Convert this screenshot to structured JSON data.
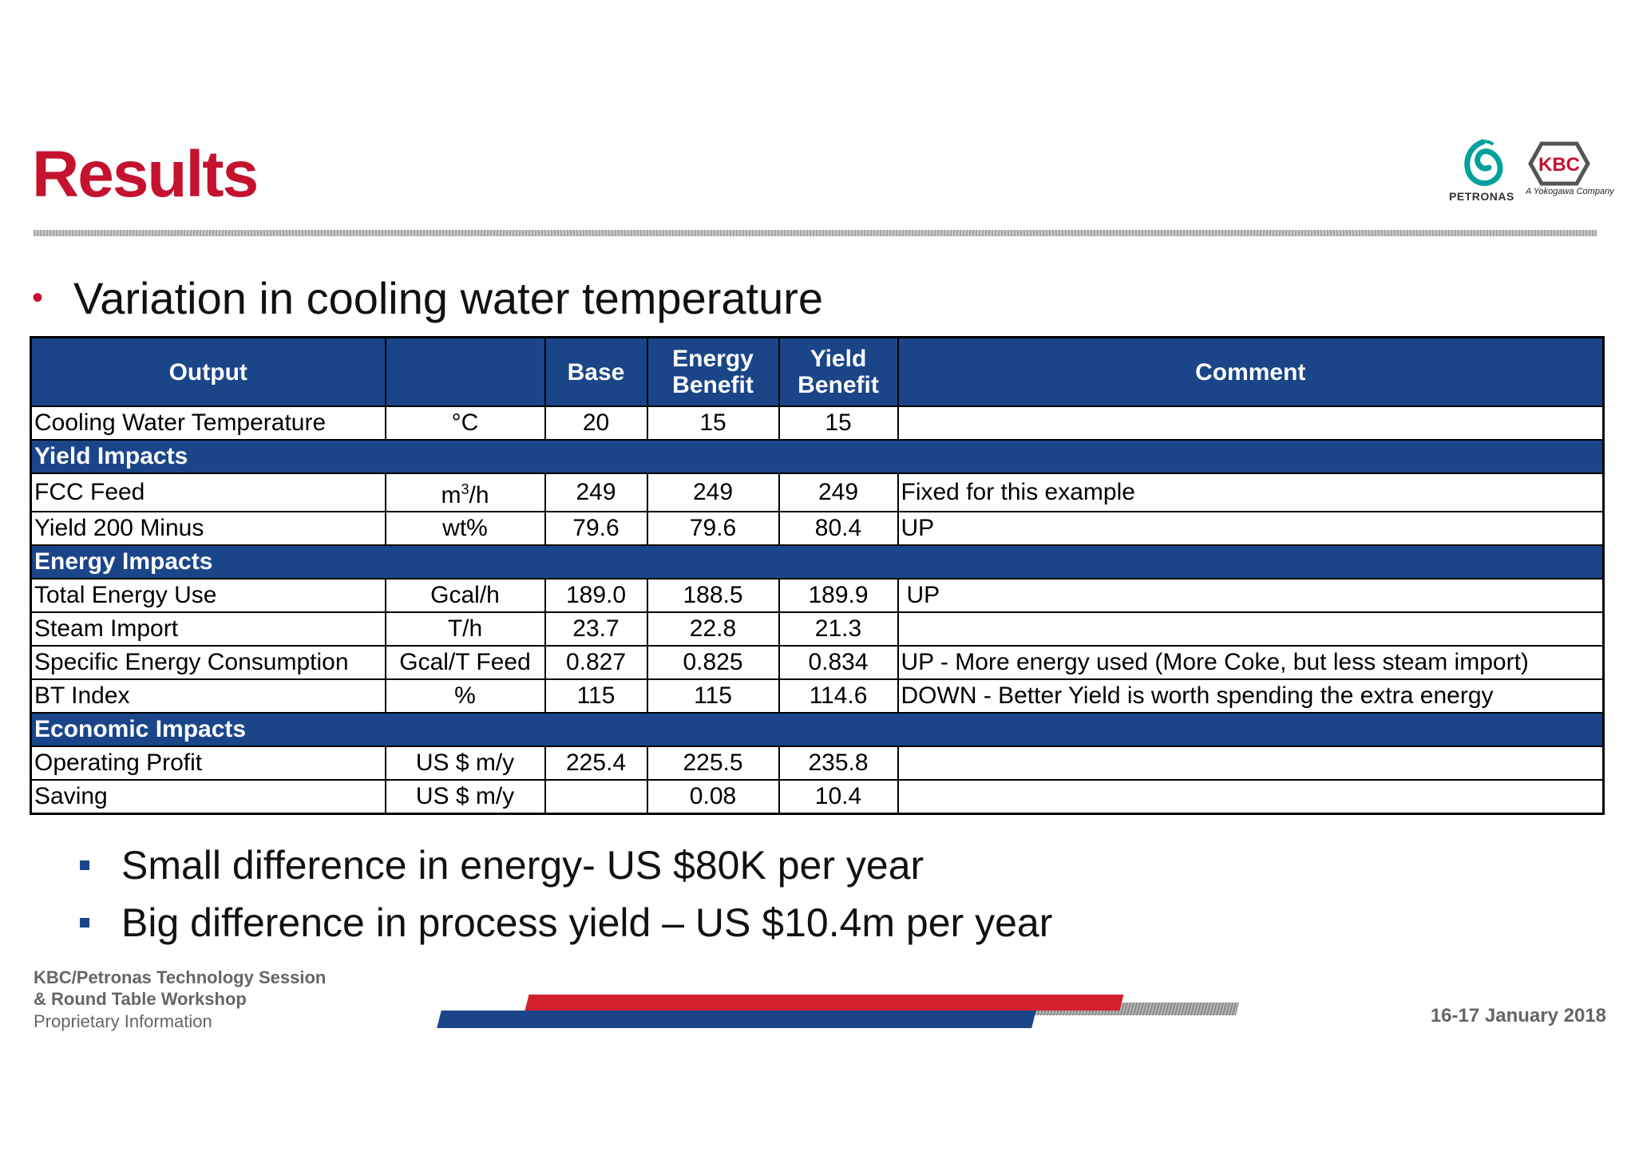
{
  "header": {
    "title": "Results",
    "logos": {
      "petronas": "PETRONAS",
      "kbc": "KBC",
      "kbc_tagline": "A Yokogawa Company"
    }
  },
  "subtitle": "Variation in cooling water temperature",
  "table": {
    "headers": {
      "output": "Output",
      "unit": "",
      "base": "Base",
      "energy_benefit_l1": "Energy",
      "energy_benefit_l2": "Benefit",
      "yield_benefit_l1": "Yield",
      "yield_benefit_l2": "Benefit",
      "comment": "Comment"
    },
    "rows": [
      {
        "output": "Cooling Water Temperature",
        "unit": "°C",
        "base": "20",
        "energy": "15",
        "yield": "15",
        "comment": ""
      },
      {
        "output": "FCC Feed",
        "unit_main": "m",
        "unit_sup": "3",
        "unit_tail": "/h",
        "base": "249",
        "energy": "249",
        "yield": "249",
        "comment": "Fixed for this example"
      },
      {
        "output": "Yield 200 Minus",
        "unit": "wt%",
        "base": "79.6",
        "energy": "79.6",
        "yield": "80.4",
        "comment": "UP"
      },
      {
        "output": "Total Energy Use",
        "unit": "Gcal/h",
        "base": "189.0",
        "energy": "188.5",
        "yield": "189.9",
        "comment": " UP"
      },
      {
        "output": "Steam Import",
        "unit": "T/h",
        "base": "23.7",
        "energy": "22.8",
        "yield": "21.3",
        "comment": ""
      },
      {
        "output": "Specific Energy Consumption",
        "unit": "Gcal/T Feed",
        "base": "0.827",
        "energy": "0.825",
        "yield": "0.834",
        "comment": "UP - More energy used (More Coke, but less steam import)"
      },
      {
        "output": "BT Index",
        "unit": "%",
        "base": "115",
        "energy": "115",
        "yield": "114.6",
        "comment": "DOWN - Better Yield is worth spending the extra energy"
      },
      {
        "output": "Operating Profit",
        "unit": "US $ m/y",
        "base": "225.4",
        "energy": "225.5",
        "yield": "235.8",
        "comment": ""
      },
      {
        "output": "Saving",
        "unit": "US $ m/y",
        "base": "",
        "energy": "0.08",
        "yield": "10.4",
        "comment": ""
      }
    ],
    "sections": {
      "yield": "Yield Impacts",
      "energy": "Energy Impacts",
      "economic": "Economic Impacts"
    }
  },
  "summary": [
    "Small difference in energy- US $80K per year",
    "Big difference in process yield – US $10.4m per year"
  ],
  "footer": {
    "line1": "KBC/Petronas Technology Session",
    "line2": "& Round Table Workshop",
    "line3": "Proprietary Information",
    "date": "16-17 January 2018"
  },
  "colors": {
    "title_red": "#c4122f",
    "header_blue": "#1a4589",
    "petronas_teal": "#00a19c"
  }
}
